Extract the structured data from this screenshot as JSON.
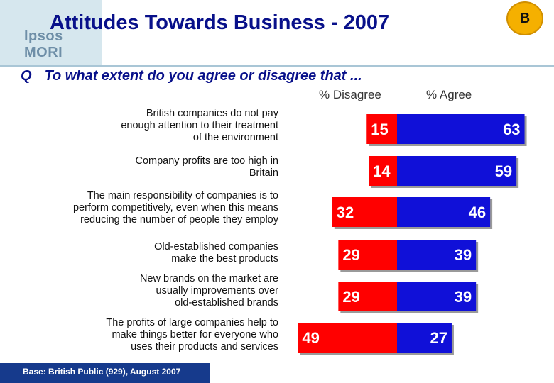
{
  "header": {
    "logo_text": "Ipsos MORI",
    "title": "Attitudes Towards Business - 2007",
    "badge": "B"
  },
  "question": {
    "prefix": "Q",
    "text": "To what extent do you agree or disagree that ..."
  },
  "footer": {
    "base": "Base: British Public (929), August 2007"
  },
  "colors": {
    "disagree": "#ff0000",
    "agree": "#1010d8",
    "title": "#08108a",
    "badge": "#f5b000",
    "footer_bg": "#163a8c"
  },
  "chart_data": {
    "type": "bar",
    "orientation": "horizontal-diverging",
    "column_headers": [
      "% Disagree",
      "% Agree"
    ],
    "categories": [
      "British companies do not pay\nenough attention to their treatment\nof the environment",
      "Company profits are too high in\nBritain",
      "The main responsibility of companies is to\nperform competitively,  even when this means\nreducing the number of people they employ",
      "Old-established companies\nmake the best products",
      "New brands on the market are\nusually improvements over\nold-established brands",
      "The profits of large companies help to\nmake things better for everyone who\nuses their products and services"
    ],
    "series": [
      {
        "name": "% Disagree",
        "values": [
          15,
          14,
          32,
          29,
          29,
          49
        ]
      },
      {
        "name": "% Agree",
        "values": [
          63,
          59,
          46,
          39,
          39,
          27
        ]
      }
    ]
  }
}
